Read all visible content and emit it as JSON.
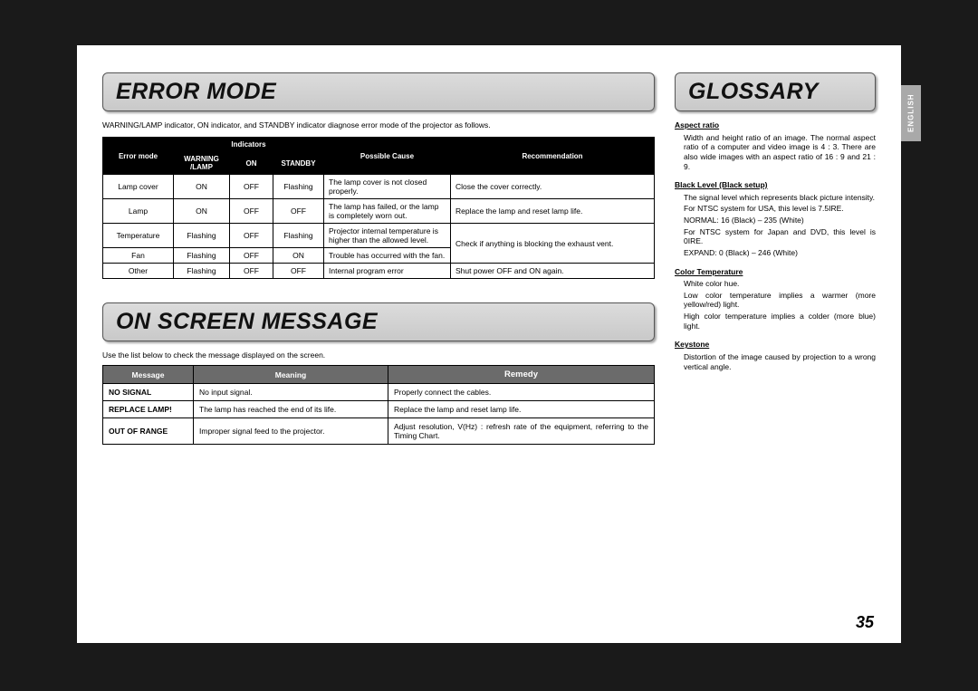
{
  "lang_tab": "ENGLISH",
  "page_number": "35",
  "left": {
    "error_mode": {
      "heading": "ERROR MODE",
      "intro": "WARNING/LAMP indicator, ON indicator, and STANDBY indicator diagnose error mode of the projector as follows.",
      "table": {
        "header_top_errmode": "Error mode",
        "header_top_indicators": "Indicators",
        "header_top_cause": "Possible Cause",
        "header_top_reco": "Recommendation",
        "header_sub_warn": "WARNING\n/LAMP",
        "header_sub_on": "ON",
        "header_sub_standby": "STANDBY",
        "rows": [
          {
            "mode": "Lamp cover",
            "warn": "ON",
            "on": "OFF",
            "stby": "Flashing",
            "cause": "The lamp cover is not closed properly.",
            "reco": "Close the cover correctly."
          },
          {
            "mode": "Lamp",
            "warn": "ON",
            "on": "OFF",
            "stby": "OFF",
            "cause": "The lamp has failed, or the lamp is completely worn out.",
            "reco": "Replace the lamp and reset lamp life."
          },
          {
            "mode": "Temperature",
            "warn": "Flashing",
            "on": "OFF",
            "stby": "Flashing",
            "cause": "Projector internal temperature is higher than the allowed level.",
            "reco": ""
          },
          {
            "mode": "Fan",
            "warn": "Flashing",
            "on": "OFF",
            "stby": "ON",
            "cause": "Trouble has occurred with the fan.",
            "reco": "Check if anything is blocking the exhaust vent."
          },
          {
            "mode": "Other",
            "warn": "Flashing",
            "on": "OFF",
            "stby": "OFF",
            "cause": "Internal program error",
            "reco": "Shut power OFF and ON again."
          }
        ]
      }
    },
    "on_screen": {
      "heading": "ON SCREEN MESSAGE",
      "intro": "Use the list below to check the message displayed on the screen.",
      "table": {
        "h_msg": "Message",
        "h_mean": "Meaning",
        "h_rem": "Remedy",
        "rows": [
          {
            "msg": "NO SIGNAL",
            "mean": "No input signal.",
            "rem": "Properly connect the cables."
          },
          {
            "msg": "REPLACE LAMP!",
            "mean": "The lamp has reached the end of its life.",
            "rem": "Replace the lamp and reset lamp life."
          },
          {
            "msg": "OUT OF RANGE",
            "mean": "Improper signal feed to the projector.",
            "rem": "Adjust resolution, V(Hz) : refresh rate of the equipment, referring to the Timing Chart."
          }
        ]
      }
    }
  },
  "right": {
    "heading": "GLOSSARY",
    "items": [
      {
        "term": "Aspect ratio",
        "def": "Width and height ratio of an image. The normal aspect ratio of a computer and video image is 4 : 3. There are also wide images with an aspect ratio of 16 : 9 and 21 : 9."
      },
      {
        "term": "Black Level (Black setup)",
        "def": "The signal level which represents black picture intensity.\nFor NTSC system for USA, this level is 7.5IRE.\nNORMAL: 16 (Black) – 235 (White)\nFor NTSC system for Japan and DVD, this level is 0IRE.\nEXPAND: 0 (Black) – 246 (White)"
      },
      {
        "term": "Color Temperature",
        "def": "White color hue.\nLow color temperature implies a warmer (more yellow/red) light.\nHigh color temperature implies a colder (more blue) light."
      },
      {
        "term": "Keystone",
        "def": "Distortion of the image caused by projection to a wrong vertical angle."
      }
    ]
  }
}
